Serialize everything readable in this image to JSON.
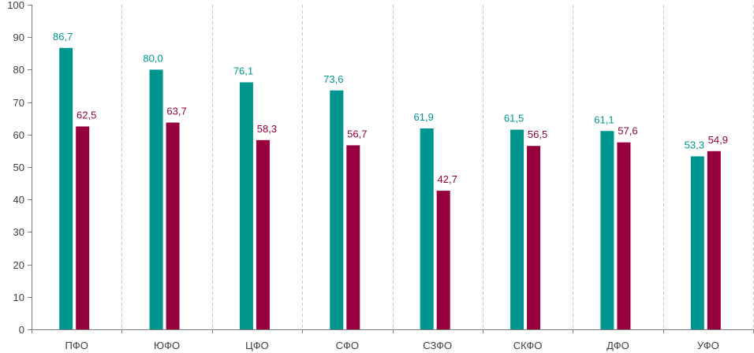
{
  "chart_data": {
    "type": "bar",
    "title": "",
    "xlabel": "",
    "ylabel": "",
    "ylim": [
      0,
      100
    ],
    "yticks": [
      0,
      10,
      20,
      30,
      40,
      50,
      60,
      70,
      80,
      90,
      100
    ],
    "grid": "vertical-dashed-separators",
    "categories": [
      "ПФО",
      "ЮФО",
      "ЦФО",
      "СФО",
      "СЗФО",
      "СКФО",
      "ДФО",
      "УФО"
    ],
    "series": [
      {
        "name": "series-1",
        "color": "#009690",
        "values": [
          86.7,
          80.0,
          76.1,
          73.6,
          61.9,
          61.5,
          61.1,
          53.3
        ],
        "labels": [
          "86,7",
          "80,0",
          "76,1",
          "73,6",
          "61,9",
          "61,5",
          "61,1",
          "53,3"
        ]
      },
      {
        "name": "series-2",
        "color": "#96003c",
        "values": [
          62.5,
          63.7,
          58.3,
          56.7,
          42.7,
          56.5,
          57.6,
          54.9
        ],
        "labels": [
          "62,5",
          "63,7",
          "58,3",
          "56,7",
          "42,7",
          "56,5",
          "57,6",
          "54,9"
        ]
      }
    ]
  }
}
